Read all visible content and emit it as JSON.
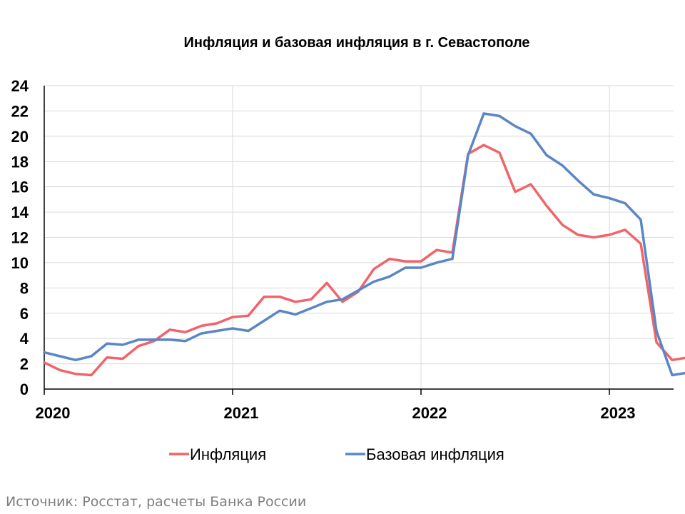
{
  "chart_data": {
    "type": "line",
    "title": "Инфляция и базовая инфляция в г. Севастополе",
    "ylim": [
      0,
      24
    ],
    "y_ticks": [
      "0",
      "2",
      "4",
      "6",
      "8",
      "10",
      "12",
      "14",
      "16",
      "18",
      "20",
      "22",
      "24"
    ],
    "x_tick_labels": [
      "2020",
      "2021",
      "2022",
      "2023"
    ],
    "x_start": "2020-01",
    "grid": true,
    "legend_position": "bottom",
    "series": [
      {
        "name": "Инфляция",
        "color": "#f0646a",
        "values": [
          2.1,
          1.5,
          1.2,
          1.1,
          2.5,
          2.4,
          3.4,
          3.8,
          4.7,
          4.5,
          5.0,
          5.2,
          5.7,
          5.8,
          7.3,
          7.3,
          6.9,
          7.1,
          8.4,
          6.9,
          7.7,
          9.5,
          10.3,
          10.1,
          10.1,
          11.0,
          10.8,
          18.6,
          19.3,
          18.7,
          15.6,
          16.2,
          14.5,
          13.0,
          12.2,
          12.0,
          12.2,
          12.6,
          11.5,
          3.7,
          2.3,
          2.5
        ]
      },
      {
        "name": "Базовая инфляция",
        "color": "#5b86c4",
        "values": [
          2.9,
          2.6,
          2.3,
          2.6,
          3.6,
          3.5,
          3.9,
          3.9,
          3.9,
          3.8,
          4.4,
          4.6,
          4.8,
          4.6,
          5.4,
          6.2,
          5.9,
          6.4,
          6.9,
          7.1,
          7.8,
          8.5,
          8.9,
          9.6,
          9.6,
          10.0,
          10.3,
          18.5,
          21.8,
          21.6,
          20.8,
          20.2,
          18.5,
          17.7,
          16.5,
          15.4,
          15.1,
          14.7,
          13.4,
          4.6,
          1.1,
          1.3
        ]
      }
    ]
  },
  "source": "Источник: Росстат, расчеты Банка России"
}
